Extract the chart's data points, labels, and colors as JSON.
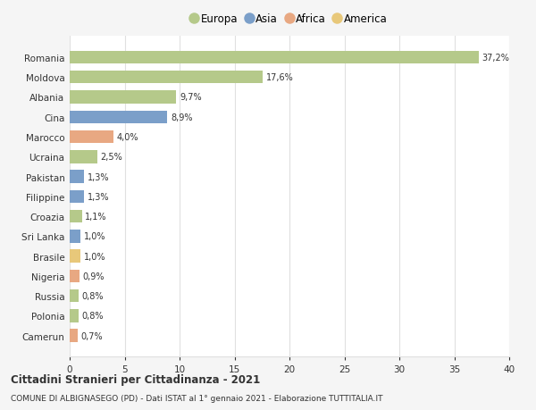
{
  "countries": [
    "Romania",
    "Moldova",
    "Albania",
    "Cina",
    "Marocco",
    "Ucraina",
    "Pakistan",
    "Filippine",
    "Croazia",
    "Sri Lanka",
    "Brasile",
    "Nigeria",
    "Russia",
    "Polonia",
    "Camerun"
  ],
  "values": [
    37.2,
    17.6,
    9.7,
    8.9,
    4.0,
    2.5,
    1.3,
    1.3,
    1.1,
    1.0,
    1.0,
    0.9,
    0.8,
    0.8,
    0.7
  ],
  "labels": [
    "37,2%",
    "17,6%",
    "9,7%",
    "8,9%",
    "4,0%",
    "2,5%",
    "1,3%",
    "1,3%",
    "1,1%",
    "1,0%",
    "1,0%",
    "0,9%",
    "0,8%",
    "0,8%",
    "0,7%"
  ],
  "colors": [
    "#b5c98a",
    "#b5c98a",
    "#b5c98a",
    "#7b9fc9",
    "#e8a882",
    "#b5c98a",
    "#7b9fc9",
    "#7b9fc9",
    "#b5c98a",
    "#7b9fc9",
    "#e8c87a",
    "#e8a882",
    "#b5c98a",
    "#b5c98a",
    "#e8a882"
  ],
  "legend": [
    {
      "label": "Europa",
      "color": "#b5c98a"
    },
    {
      "label": "Asia",
      "color": "#7b9fc9"
    },
    {
      "label": "Africa",
      "color": "#e8a882"
    },
    {
      "label": "America",
      "color": "#e8c87a"
    }
  ],
  "xlim": [
    0,
    40
  ],
  "xticks": [
    0,
    5,
    10,
    15,
    20,
    25,
    30,
    35,
    40
  ],
  "title": "Cittadini Stranieri per Cittadinanza - 2021",
  "subtitle": "COMUNE DI ALBIGNASEGO (PD) - Dati ISTAT al 1° gennaio 2021 - Elaborazione TUTTITALIA.IT",
  "bg_color": "#f5f5f5",
  "bar_bg_color": "#ffffff",
  "grid_color": "#e0e0e0",
  "text_color": "#333333"
}
